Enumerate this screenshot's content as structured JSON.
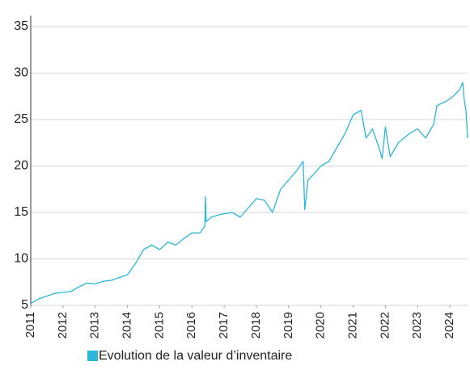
{
  "chart_data": {
    "type": "line",
    "x": [
      2011.0,
      2011.25,
      2011.5,
      2011.75,
      2012.0,
      2012.25,
      2012.5,
      2012.75,
      2013.0,
      2013.25,
      2013.5,
      2013.75,
      2014.0,
      2014.25,
      2014.5,
      2014.75,
      2015.0,
      2015.25,
      2015.5,
      2015.75,
      2016.0,
      2016.25,
      2016.4,
      2016.42,
      2016.44,
      2016.6,
      2016.9,
      2017.25,
      2017.5,
      2017.75,
      2018.0,
      2018.25,
      2018.5,
      2018.75,
      2019.0,
      2019.25,
      2019.45,
      2019.5,
      2019.6,
      2019.75,
      2020.0,
      2020.25,
      2020.5,
      2020.75,
      2021.0,
      2021.25,
      2021.4,
      2021.6,
      2021.8,
      2021.9,
      2022.0,
      2022.15,
      2022.4,
      2022.75,
      2023.0,
      2023.25,
      2023.5,
      2023.6,
      2023.9,
      2024.1,
      2024.3,
      2024.4,
      2024.45,
      2024.5,
      2024.55
    ],
    "series": [
      {
        "name": "Evolution de la valeur d’inventaire",
        "color": "#2bb7d9",
        "values": [
          5.2,
          5.7,
          6.0,
          6.3,
          6.4,
          6.5,
          7.0,
          7.4,
          7.3,
          7.6,
          7.7,
          8.0,
          8.3,
          9.5,
          11.0,
          11.5,
          11.0,
          11.8,
          11.5,
          12.2,
          12.8,
          12.8,
          13.5,
          16.7,
          14.0,
          14.5,
          14.8,
          15.0,
          14.5,
          15.5,
          16.5,
          16.3,
          15.0,
          17.5,
          18.5,
          19.5,
          20.5,
          15.3,
          18.5,
          19.0,
          20.0,
          20.5,
          22.0,
          23.5,
          25.5,
          26.0,
          23.0,
          24.0,
          22.0,
          20.8,
          24.2,
          21.0,
          22.5,
          23.5,
          24.0,
          23.0,
          24.5,
          26.5,
          27.0,
          27.5,
          28.2,
          29.0,
          27.0,
          26.0,
          23.0
        ]
      }
    ],
    "xlim": [
      2011,
      2024.55
    ],
    "xticks": [
      2011,
      2012,
      2013,
      2014,
      2015,
      2016,
      2017,
      2018,
      2019,
      2020,
      2021,
      2022,
      2023,
      2024
    ],
    "ylim": [
      5,
      36
    ],
    "yticks": [
      5,
      10,
      15,
      20,
      25,
      30,
      35
    ],
    "grid": true
  }
}
